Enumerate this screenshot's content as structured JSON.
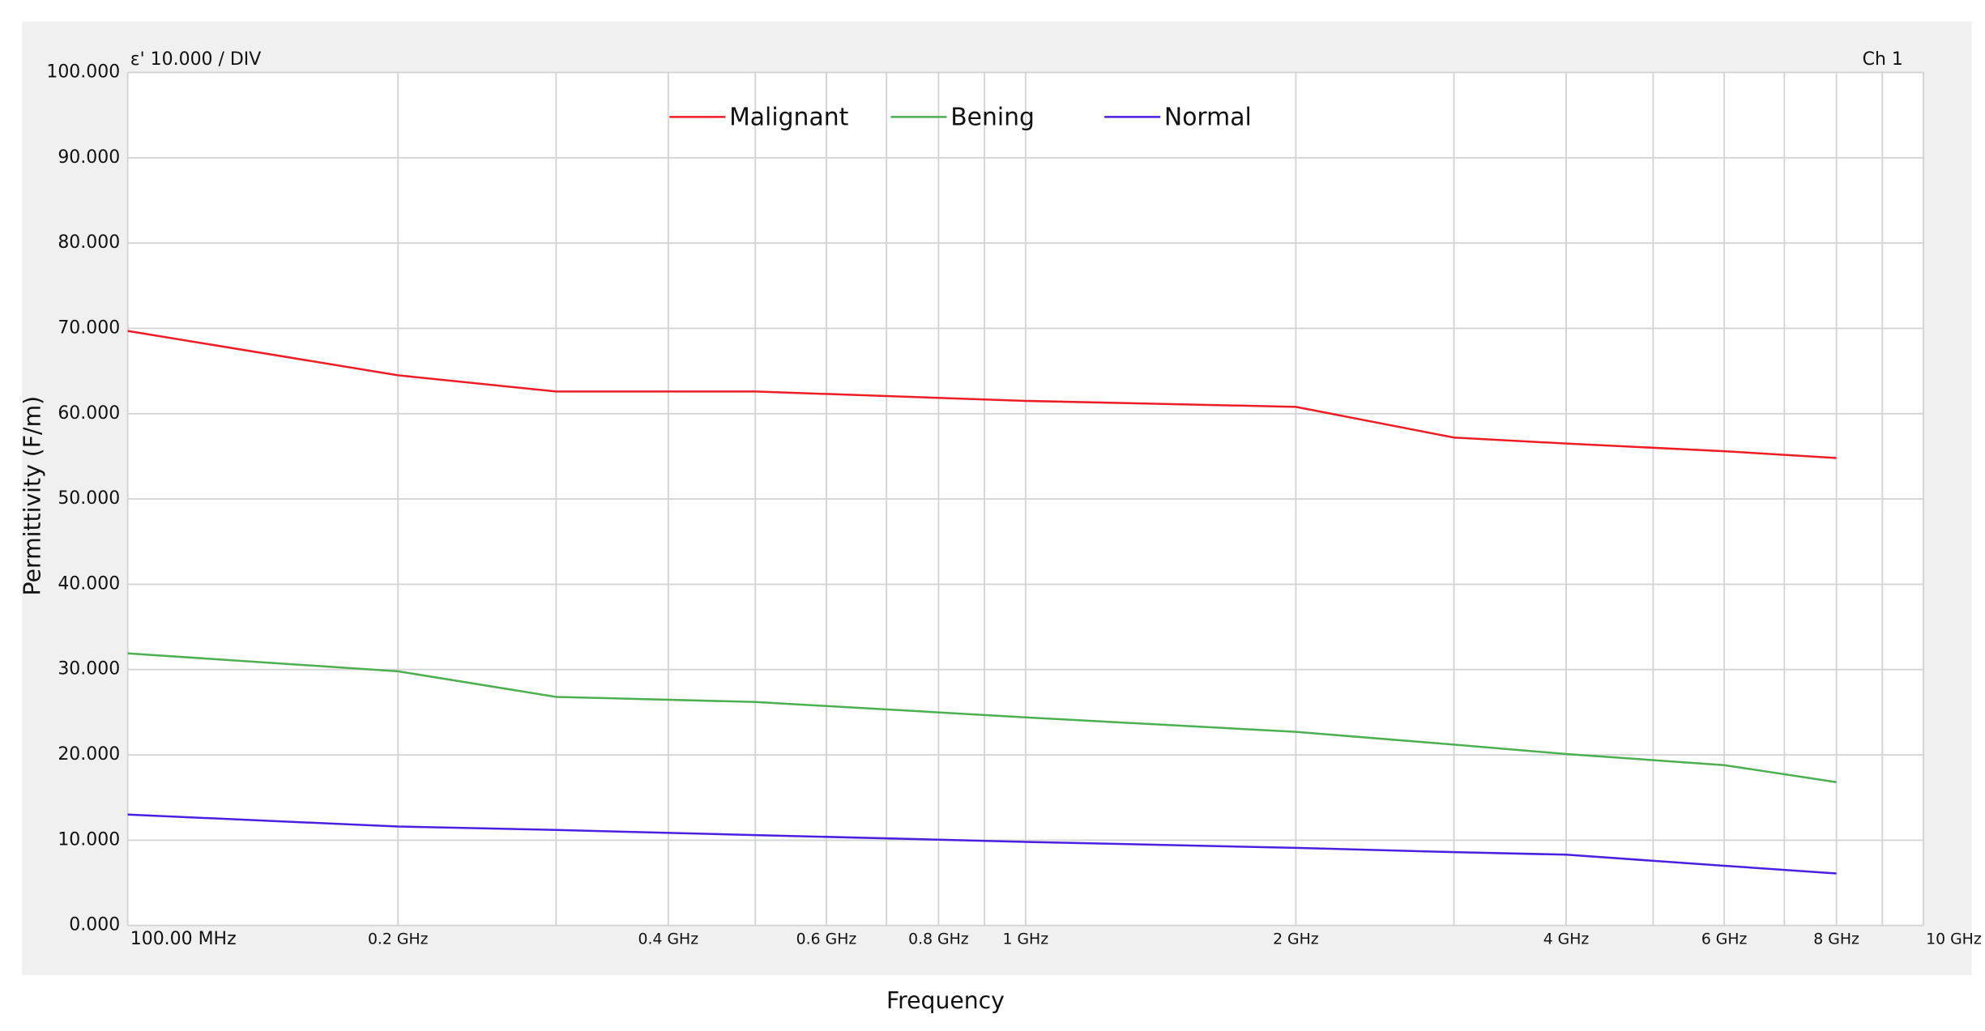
{
  "chart_data": {
    "type": "line",
    "title": "ε'  10.000 / DIV",
    "channel": "Ch 1",
    "xlabel": "Frequency",
    "ylabel": "Permittivity (F/m)",
    "xscale": "log",
    "x": [
      0.1,
      0.2,
      0.3,
      0.5,
      1,
      2,
      3,
      4,
      6,
      8
    ],
    "series": [
      {
        "name": "Malignant",
        "color": "#ee1c24",
        "values": [
          69.7,
          64.5,
          62.6,
          62.6,
          61.5,
          60.8,
          57.2,
          56.5,
          55.6,
          54.8
        ]
      },
      {
        "name": "Bening",
        "color": "#4caf50",
        "values": [
          31.9,
          29.8,
          26.8,
          26.2,
          24.4,
          22.7,
          21.2,
          20.1,
          18.8,
          16.8
        ]
      },
      {
        "name": "Normal",
        "color": "#4b1fe0",
        "values": [
          13.0,
          11.6,
          11.2,
          10.6,
          9.8,
          9.1,
          8.6,
          8.3,
          7.0,
          6.1
        ]
      }
    ],
    "xlim": [
      0.1,
      10
    ],
    "xticks": [
      {
        "value": 0.1,
        "label": "100.00 MHz"
      },
      {
        "value": 0.2,
        "label": "0.2 GHz"
      },
      {
        "value": 0.4,
        "label": "0.4 GHz"
      },
      {
        "value": 0.6,
        "label": "0.6 GHz"
      },
      {
        "value": 0.8,
        "label": "0.8 GHz"
      },
      {
        "value": 1,
        "label": "1 GHz"
      },
      {
        "value": 2,
        "label": "2 GHz"
      },
      {
        "value": 4,
        "label": "4 GHz"
      },
      {
        "value": 6,
        "label": "6 GHz"
      },
      {
        "value": 8,
        "label": "8 GHz"
      },
      {
        "value": 10,
        "label": "10 GHz"
      }
    ],
    "minor_xticks": [
      0.3,
      0.5,
      0.7,
      0.9,
      3,
      5,
      7,
      9
    ],
    "ylim": [
      0,
      100
    ],
    "yticks": [
      {
        "value": 0,
        "label": "0.000"
      },
      {
        "value": 10,
        "label": "10.000"
      },
      {
        "value": 20,
        "label": "20.000"
      },
      {
        "value": 30,
        "label": "30.000"
      },
      {
        "value": 40,
        "label": "40.000"
      },
      {
        "value": 50,
        "label": "50.000"
      },
      {
        "value": 60,
        "label": "60.000"
      },
      {
        "value": 70,
        "label": "70.000"
      },
      {
        "value": 80,
        "label": "80.000"
      },
      {
        "value": 90,
        "label": "90.000"
      },
      {
        "value": 100,
        "label": "100.000"
      }
    ],
    "grid": true,
    "legend": "top"
  }
}
